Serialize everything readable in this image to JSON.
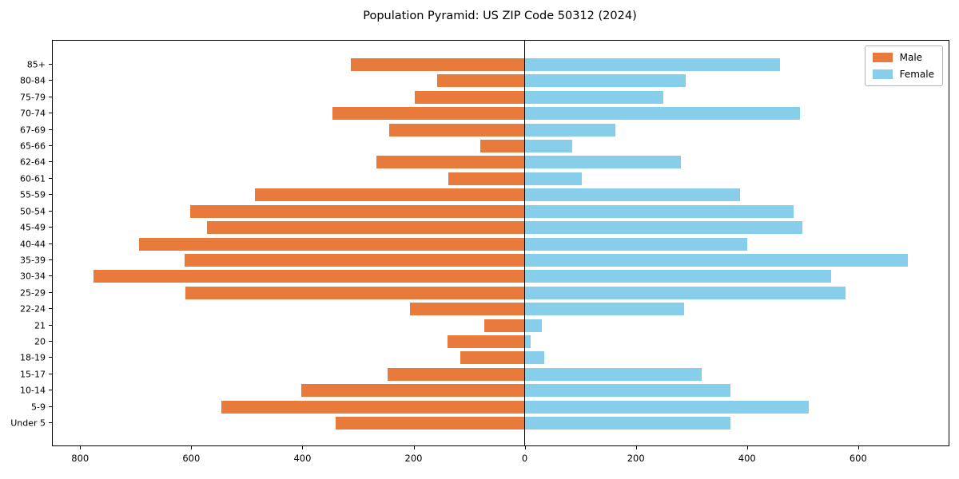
{
  "title": "Population Pyramid: US ZIP Code 50312 (2024)",
  "legend": {
    "male_label": "Male",
    "female_label": "Female"
  },
  "colors": {
    "male": "#e87a3c",
    "female": "#87ceeb",
    "axis": "#000000",
    "background": "#ffffff"
  },
  "chart_data": {
    "type": "bar",
    "subtype": "population-pyramid",
    "orientation": "horizontal",
    "title": "Population Pyramid: US ZIP Code 50312 (2024)",
    "categories": [
      "85+",
      "80-84",
      "75-79",
      "70-74",
      "67-69",
      "65-66",
      "62-64",
      "60-61",
      "55-59",
      "50-54",
      "45-49",
      "40-44",
      "35-39",
      "30-34",
      "25-29",
      "22-24",
      "21",
      "20",
      "18-19",
      "15-17",
      "10-14",
      "5-9",
      "Under 5"
    ],
    "series": [
      {
        "name": "Male",
        "side": "left",
        "color": "#e87a3c",
        "values": [
          312,
          158,
          197,
          346,
          243,
          79,
          266,
          137,
          485,
          601,
          572,
          694,
          612,
          776,
          611,
          206,
          72,
          139,
          115,
          247,
          402,
          546,
          340
        ]
      },
      {
        "name": "Female",
        "side": "right",
        "color": "#87ceeb",
        "values": [
          460,
          290,
          250,
          496,
          164,
          86,
          282,
          103,
          387,
          484,
          500,
          400,
          690,
          552,
          578,
          287,
          31,
          11,
          35,
          318,
          371,
          512,
          371
        ]
      }
    ],
    "x_tick_values": [
      -800,
      -600,
      -400,
      -200,
      0,
      200,
      400,
      600
    ],
    "x_tick_labels": [
      "800",
      "600",
      "400",
      "200",
      "0",
      "200",
      "400",
      "600"
    ],
    "xlim": [
      -849,
      763
    ],
    "grid": false,
    "legend_position": "upper right",
    "center_line_at": 0
  }
}
